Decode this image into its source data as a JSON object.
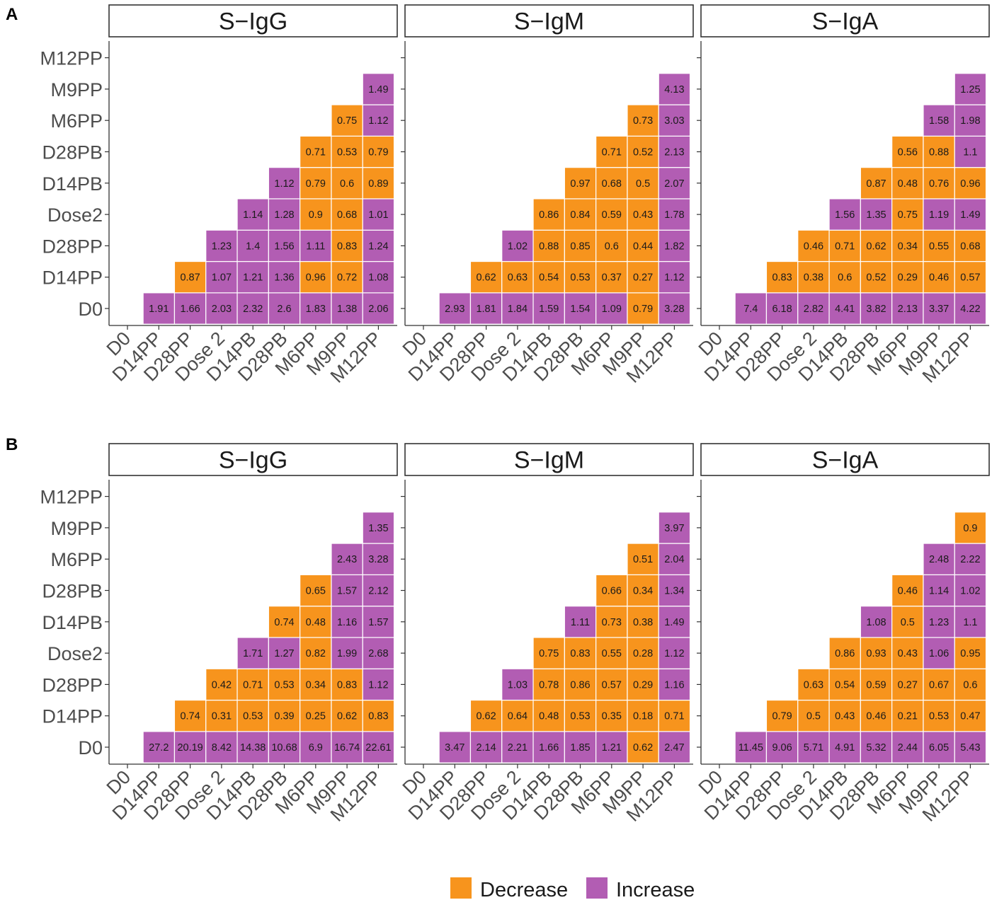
{
  "chart_data": {
    "type": "heatmap",
    "title": "",
    "xlabel": "",
    "ylabel": "",
    "x_ticks": [
      "D0",
      "D14PP",
      "D28PP",
      "Dose 2",
      "D14PB",
      "D28PB",
      "M6PP",
      "M9PP",
      "M12PP"
    ],
    "y_ticks": [
      "D0",
      "D14PP",
      "D28PP",
      "Dose2",
      "D14PB",
      "D28PB",
      "M6PP",
      "M9PP",
      "M12PP"
    ],
    "legend": {
      "position": "bottom",
      "entries": [
        {
          "label": "Decrease",
          "color": "#F7941D"
        },
        {
          "label": "Increase",
          "color": "#B25DB3"
        }
      ]
    },
    "rule": "value < 1 = Decrease, value >= 1 = Increase",
    "panels": [
      {
        "tag": "A",
        "facets": [
          {
            "title": "S−IgG",
            "rows": [
              [
                "1.91",
                "1.66",
                "2.03",
                "2.32",
                "2.6",
                "1.83",
                "1.38",
                "2.06"
              ],
              [
                "0.87",
                "1.07",
                "1.21",
                "1.36",
                "0.96",
                "0.72",
                "1.08"
              ],
              [
                "1.23",
                "1.4",
                "1.56",
                "1.11",
                "0.83",
                "1.24"
              ],
              [
                "1.14",
                "1.28",
                "0.9",
                "0.68",
                "1.01"
              ],
              [
                "1.12",
                "0.79",
                "0.6",
                "0.89"
              ],
              [
                "0.71",
                "0.53",
                "0.79"
              ],
              [
                "0.75",
                "1.12"
              ],
              [
                "1.49"
              ]
            ]
          },
          {
            "title": "S−IgM",
            "rows": [
              [
                "2.93",
                "1.81",
                "1.84",
                "1.59",
                "1.54",
                "1.09",
                "0.79",
                "3.28"
              ],
              [
                "0.62",
                "0.63",
                "0.54",
                "0.53",
                "0.37",
                "0.27",
                "1.12"
              ],
              [
                "1.02",
                "0.88",
                "0.85",
                "0.6",
                "0.44",
                "1.82"
              ],
              [
                "0.86",
                "0.84",
                "0.59",
                "0.43",
                "1.78"
              ],
              [
                "0.97",
                "0.68",
                "0.5",
                "2.07"
              ],
              [
                "0.71",
                "0.52",
                "2.13"
              ],
              [
                "0.73",
                "3.03"
              ],
              [
                "4.13"
              ]
            ]
          },
          {
            "title": "S−IgA",
            "rows": [
              [
                "7.4",
                "6.18",
                "2.82",
                "4.41",
                "3.82",
                "2.13",
                "3.37",
                "4.22"
              ],
              [
                "0.83",
                "0.38",
                "0.6",
                "0.52",
                "0.29",
                "0.46",
                "0.57"
              ],
              [
                "0.46",
                "0.71",
                "0.62",
                "0.34",
                "0.55",
                "0.68"
              ],
              [
                "1.56",
                "1.35",
                "0.75",
                "1.19",
                "1.49"
              ],
              [
                "0.87",
                "0.48",
                "0.76",
                "0.96"
              ],
              [
                "0.56",
                "0.88",
                "1.1"
              ],
              [
                "1.58",
                "1.98"
              ],
              [
                "1.25"
              ]
            ]
          }
        ]
      },
      {
        "tag": "B",
        "facets": [
          {
            "title": "S−IgG",
            "rows": [
              [
                "27.2",
                "20.19",
                "8.42",
                "14.38",
                "10.68",
                "6.9",
                "16.74",
                "22.61"
              ],
              [
                "0.74",
                "0.31",
                "0.53",
                "0.39",
                "0.25",
                "0.62",
                "0.83"
              ],
              [
                "0.42",
                "0.71",
                "0.53",
                "0.34",
                "0.83",
                "1.12"
              ],
              [
                "1.71",
                "1.27",
                "0.82",
                "1.99",
                "2.68"
              ],
              [
                "0.74",
                "0.48",
                "1.16",
                "1.57"
              ],
              [
                "0.65",
                "1.57",
                "2.12"
              ],
              [
                "2.43",
                "3.28"
              ],
              [
                "1.35"
              ]
            ]
          },
          {
            "title": "S−IgM",
            "rows": [
              [
                "3.47",
                "2.14",
                "2.21",
                "1.66",
                "1.85",
                "1.21",
                "0.62",
                "2.47"
              ],
              [
                "0.62",
                "0.64",
                "0.48",
                "0.53",
                "0.35",
                "0.18",
                "0.71"
              ],
              [
                "1.03",
                "0.78",
                "0.86",
                "0.57",
                "0.29",
                "1.16"
              ],
              [
                "0.75",
                "0.83",
                "0.55",
                "0.28",
                "1.12"
              ],
              [
                "1.11",
                "0.73",
                "0.38",
                "1.49"
              ],
              [
                "0.66",
                "0.34",
                "1.34"
              ],
              [
                "0.51",
                "2.04"
              ],
              [
                "3.97"
              ]
            ]
          },
          {
            "title": "S−IgA",
            "rows": [
              [
                "11.45",
                "9.06",
                "5.71",
                "4.91",
                "5.32",
                "2.44",
                "6.05",
                "5.43"
              ],
              [
                "0.79",
                "0.5",
                "0.43",
                "0.46",
                "0.21",
                "0.53",
                "0.47"
              ],
              [
                "0.63",
                "0.54",
                "0.59",
                "0.27",
                "0.67",
                "0.6"
              ],
              [
                "0.86",
                "0.93",
                "0.43",
                "1.06",
                "0.95"
              ],
              [
                "1.08",
                "0.5",
                "1.23",
                "1.1"
              ],
              [
                "0.46",
                "1.14",
                "1.02"
              ],
              [
                "2.48",
                "2.22"
              ],
              [
                "0.9"
              ]
            ]
          }
        ]
      }
    ]
  }
}
